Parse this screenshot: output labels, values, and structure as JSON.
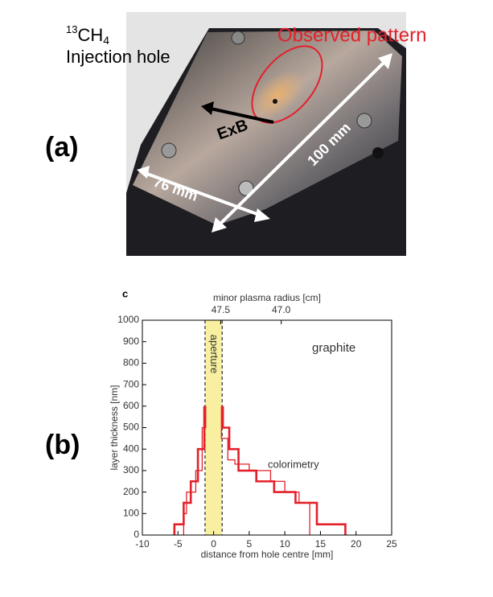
{
  "panel_a": {
    "letter": "(a)",
    "gas": {
      "sup": "13",
      "base": "CH",
      "sub": "4"
    },
    "hole_label": "Injection hole",
    "pattern_label": "Observed pattern",
    "drift_label": "ExB",
    "length_label": "100 mm",
    "width_label": "76 mm"
  },
  "panel_b": {
    "letter": "(b)"
  },
  "chart_data": {
    "type": "line",
    "panel_label": "c",
    "xlabel": "distance from hole centre [mm]",
    "ylabel": "layer thickness [nm]",
    "x2label": "minor plasma radius [cm]",
    "xlim": [
      -10,
      25
    ],
    "xticks": [
      -10,
      -5,
      0,
      5,
      10,
      15,
      20,
      25
    ],
    "ylim": [
      0,
      1000
    ],
    "yticks": [
      0,
      100,
      200,
      300,
      400,
      500,
      600,
      700,
      800,
      900,
      1000
    ],
    "x2lim": [
      48.147,
      46.088
    ],
    "x2ticks": [
      47.5,
      {
        "value": 47,
        "label": "47.0"
      }
    ],
    "grid": false,
    "shade": {
      "x": [
        -1.2,
        1.2
      ],
      "label": "aperture",
      "color": "#f8f0a0"
    },
    "annotations": {
      "material": "graphite",
      "method": "colorimetry"
    },
    "series": [
      {
        "color": "#e3202a",
        "line_width": 2.6,
        "x": [
          -5.5,
          -5.5,
          -4.2,
          -4.2,
          -3.2,
          -3.2,
          -2.2,
          -2.2,
          -1.3,
          -1.3,
          null,
          1.3,
          1.3,
          2.2,
          2.2,
          3.5,
          3.5,
          6,
          6,
          8.5,
          8.5,
          11.5,
          11.5,
          14.5,
          14.5,
          18.5,
          18.5
        ],
        "values": [
          0,
          50,
          50,
          150,
          150,
          250,
          250,
          400,
          400,
          600,
          null,
          600,
          500,
          500,
          400,
          400,
          300,
          300,
          250,
          250,
          200,
          200,
          150,
          150,
          50,
          50,
          0
        ]
      },
      {
        "color": "#e3202a",
        "line_width": 1.3,
        "x": [
          -4.2,
          -4.2,
          -3.8,
          -3.8,
          -2.5,
          -2.5,
          -1.6,
          -1.6,
          -1.1,
          -1.1,
          null,
          1.1,
          1.1,
          2,
          2,
          3,
          3,
          5,
          5,
          8,
          8,
          10,
          10,
          12,
          12,
          13.5,
          13.5
        ],
        "values": [
          0,
          100,
          100,
          200,
          200,
          300,
          300,
          500,
          500,
          600,
          null,
          600,
          450,
          450,
          350,
          350,
          330,
          330,
          300,
          300,
          250,
          250,
          200,
          200,
          150,
          150,
          0
        ]
      }
    ]
  }
}
